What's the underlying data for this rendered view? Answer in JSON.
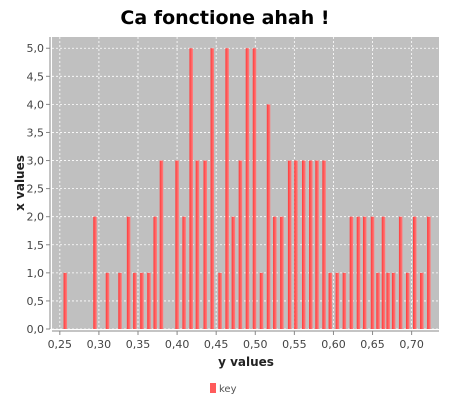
{
  "chart_data": {
    "type": "bar",
    "title": "Ca fonctione ahah !",
    "xlabel": "y values",
    "ylabel": "x values",
    "xlim": [
      0.24,
      0.735
    ],
    "ylim": [
      0,
      5.2
    ],
    "x_ticks": [
      "0,25",
      "0,30",
      "0,35",
      "0,40",
      "0,45",
      "0,50",
      "0,55",
      "0,60",
      "0,65",
      "0,70"
    ],
    "x_tick_values": [
      0.25,
      0.3,
      0.35,
      0.4,
      0.45,
      0.5,
      0.55,
      0.6,
      0.65,
      0.7
    ],
    "y_ticks": [
      "0,0",
      "0,5",
      "1,0",
      "1,5",
      "2,0",
      "2,5",
      "3,0",
      "3,5",
      "4,0",
      "4,5",
      "5,0"
    ],
    "y_tick_values": [
      0,
      0.5,
      1,
      1.5,
      2,
      2.5,
      3,
      3.5,
      4,
      4.5,
      5
    ],
    "grid": true,
    "legend_position": "bottom",
    "bar_width": 0.0045,
    "series": [
      {
        "name": "key",
        "color": "#ff5b5b",
        "x": [
          0.257,
          0.295,
          0.311,
          0.327,
          0.338,
          0.346,
          0.355,
          0.364,
          0.372,
          0.38,
          0.4,
          0.409,
          0.418,
          0.426,
          0.436,
          0.445,
          0.455,
          0.464,
          0.472,
          0.481,
          0.49,
          0.499,
          0.508,
          0.517,
          0.525,
          0.534,
          0.544,
          0.552,
          0.562,
          0.571,
          0.579,
          0.588,
          0.596,
          0.605,
          0.614,
          0.623,
          0.632,
          0.64,
          0.65,
          0.657,
          0.664,
          0.67,
          0.677,
          0.686,
          0.695,
          0.704,
          0.713,
          0.722
        ],
        "values": [
          1,
          2,
          1,
          1,
          2,
          1,
          1,
          1,
          2,
          3,
          3,
          2,
          5,
          3,
          3,
          5,
          1,
          5,
          2,
          3,
          5,
          5,
          1,
          4,
          2,
          2,
          3,
          3,
          3,
          3,
          3,
          3,
          1,
          1,
          1,
          2,
          2,
          2,
          2,
          1,
          2,
          1,
          1,
          2,
          1,
          2,
          1,
          2
        ]
      }
    ]
  }
}
